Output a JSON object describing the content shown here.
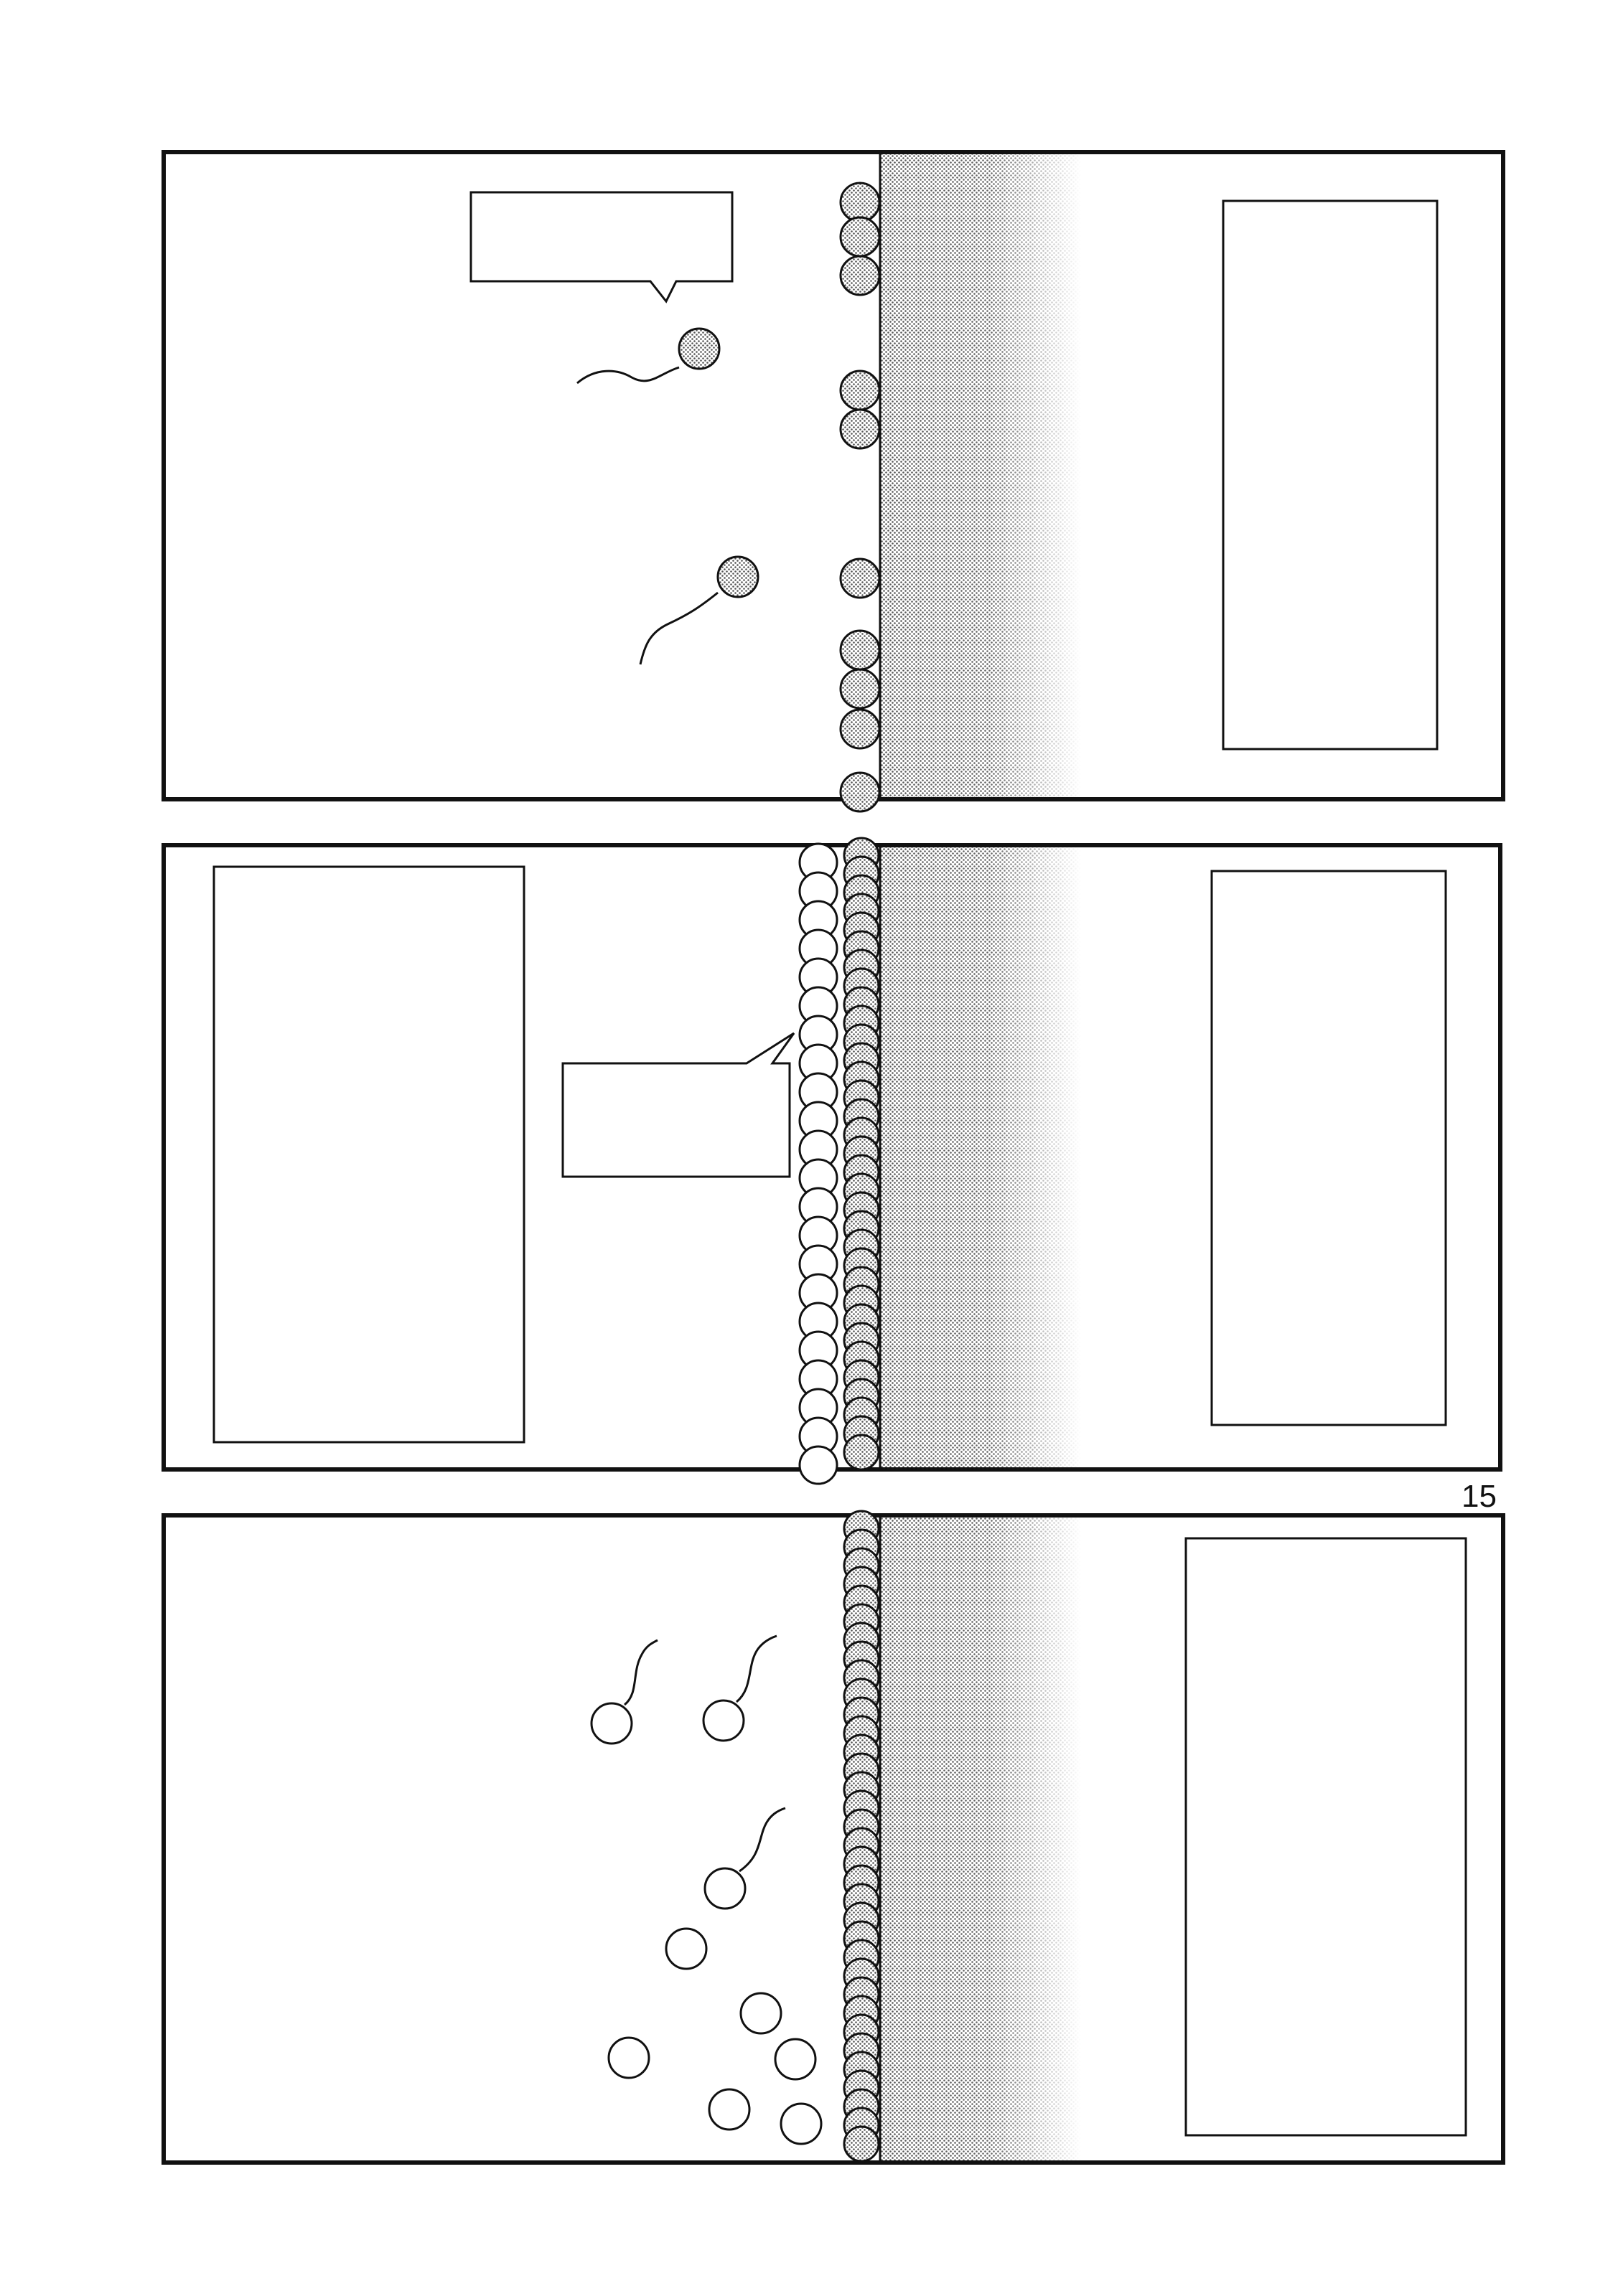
{
  "page": {
    "number": "15",
    "colors": {
      "ink": "#111111",
      "screentone": "#8a8a8a",
      "paper": "#ffffff"
    }
  },
  "panels": [
    {
      "name": "panel-1",
      "speech_balloons": 1,
      "caption_boxes": 1,
      "swimming_cells_filled": 2
    },
    {
      "name": "panel-2",
      "speech_balloons": 1,
      "caption_boxes": 2
    },
    {
      "name": "panel-3",
      "caption_boxes": 1,
      "swimming_cells_outline": 3,
      "loose_cells_outline": 6
    }
  ]
}
